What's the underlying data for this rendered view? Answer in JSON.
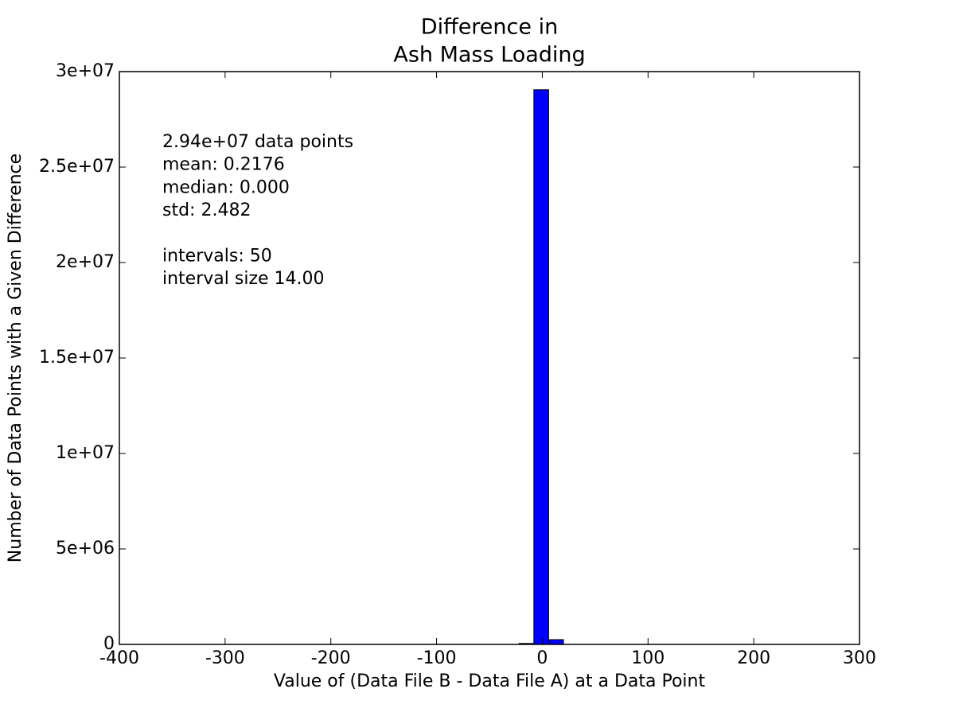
{
  "chart_data": {
    "type": "histogram",
    "title": [
      "Difference in",
      "Ash Mass Loading"
    ],
    "x_label": "Value of (Data File B - Data File A) at a Data Point",
    "y_label": "Number of Data Points with a Given Difference",
    "annotations": [
      [
        "2.94e+07 data points",
        "mean: 0.2176",
        "median: 0.000",
        "std: 2.482"
      ],
      [
        "intervals: 50",
        "interval size 14.00"
      ]
    ],
    "bins": [
      -400,
      -386,
      -372,
      -358,
      -344,
      -330,
      -316,
      -302,
      -288,
      -274,
      -260,
      -246,
      -232,
      -218,
      -204,
      -190,
      -176,
      -162,
      -148,
      -134,
      -120,
      -106,
      -92,
      -78,
      -64,
      -50,
      -36,
      -22,
      -8,
      6,
      20,
      34,
      48,
      62,
      76,
      90,
      104,
      118,
      132,
      146,
      160,
      174,
      188,
      202,
      216,
      230,
      244,
      258,
      272,
      286,
      300
    ],
    "values": [
      0,
      0,
      0,
      0,
      0,
      0,
      0,
      0,
      0,
      0,
      0,
      0,
      0,
      0,
      0,
      0,
      0,
      0,
      0,
      0,
      0,
      0,
      0,
      0,
      0,
      0,
      0,
      50000,
      29050000,
      250000,
      0,
      0,
      0,
      0,
      0,
      0,
      0,
      0,
      0,
      0,
      0,
      0,
      0,
      0,
      0,
      0,
      0,
      0,
      0,
      0
    ],
    "color": "#0000ff",
    "xlim": [
      -400,
      300
    ],
    "xticks": [
      -400,
      -300,
      -200,
      -100,
      0,
      100,
      200,
      300
    ],
    "ylim": [
      0,
      30000000
    ],
    "yticks": [
      0,
      {
        "value": 5000000,
        "label": "5e+06"
      },
      {
        "value": 10000000,
        "label": "1e+07"
      },
      {
        "value": 15000000,
        "label": "1.5e+07"
      },
      {
        "value": 20000000,
        "label": "2e+07"
      },
      {
        "value": 25000000,
        "label": "2.5e+07"
      },
      {
        "value": 30000000,
        "label": "3e+07"
      }
    ],
    "grid": false
  }
}
